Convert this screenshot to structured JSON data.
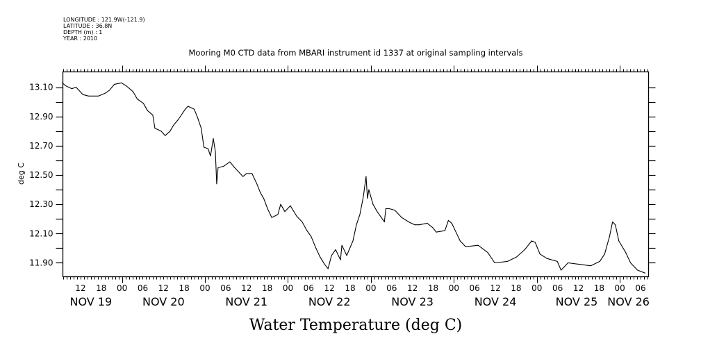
{
  "header": {
    "longitude": "LONGITUDE : 121.9W(-121.9)",
    "latitude": "LATITUDE : 36.8N",
    "depth": "DEPTH (m) : 1",
    "year": "YEAR : 2010"
  },
  "chart_data": {
    "type": "line",
    "title": "Mooring M0 CTD data from MBARI instrument id 1337 at original sampling intervals",
    "xlabel": "Water Temperature (deg C)",
    "ylabel": "deg C",
    "ylim": [
      11.805,
      13.205
    ],
    "xlim_hours_from_nov20": [
      -17.1,
      152.3
    ],
    "grid": false,
    "yticks": [
      "11.90",
      "12.10",
      "12.30",
      "12.50",
      "12.70",
      "12.90",
      "13.10"
    ],
    "xticks_hours_from_nov20": [
      -12,
      -6,
      0,
      6,
      12,
      18,
      24,
      30,
      36,
      42,
      48,
      54,
      60,
      66,
      72,
      78,
      84,
      90,
      96,
      102,
      108,
      114,
      120,
      126,
      132,
      138,
      144,
      150
    ],
    "xtick_labels": [
      "12",
      "18",
      "00",
      "06",
      "12",
      "18",
      "00",
      "06",
      "12",
      "18",
      "00",
      "06",
      "12",
      "18",
      "00",
      "06",
      "12",
      "18",
      "00",
      "06",
      "12",
      "18",
      "00",
      "06",
      "12",
      "18",
      "00",
      "06"
    ],
    "day_labels": [
      {
        "label": "NOV 19",
        "x": -9
      },
      {
        "label": "NOV 20",
        "x": 12
      },
      {
        "label": "NOV 21",
        "x": 36
      },
      {
        "label": "NOV 22",
        "x": 60
      },
      {
        "label": "NOV 23",
        "x": 84
      },
      {
        "label": "NOV 24",
        "x": 108
      },
      {
        "label": "NOV 25",
        "x": 131.5
      },
      {
        "label": "NOV 26",
        "x": 146.5
      }
    ],
    "series": [
      {
        "name": "Water Temperature",
        "color": "#000000",
        "x_hours_from_nov20": [
          -17.3,
          -16.3,
          -14.5,
          -13.3,
          -12.5,
          -11.3,
          -9.7,
          -6.8,
          -4.8,
          -3.6,
          -2.2,
          -0.2,
          1.2,
          3.2,
          4.4,
          6.2,
          7.4,
          8.9,
          9.5,
          11.3,
          12.5,
          13.9,
          14.9,
          16.3,
          18.3,
          19.1,
          20.9,
          21.9,
          22.9,
          23.7,
          24.9,
          25.6,
          26.4,
          27.0,
          27.4,
          27.8,
          29.4,
          31.2,
          32.6,
          35.0,
          36.0,
          37.6,
          39.0,
          40.0,
          41.0,
          42.1,
          43.3,
          45.1,
          45.9,
          47.1,
          48.7,
          50.5,
          52.1,
          53.5,
          54.7,
          56.1,
          57.3,
          58.6,
          59.6,
          60.6,
          61.8,
          63.2,
          63.6,
          65.0,
          66.8,
          67.8,
          68.8,
          69.8,
          70.6,
          71.0,
          71.4,
          72.6,
          73.8,
          75.9,
          76.3,
          77.3,
          78.9,
          80.9,
          82.9,
          84.7,
          85.9,
          88.3,
          89.9,
          90.9,
          93.4,
          94.4,
          95.4,
          96.8,
          97.8,
          99.4,
          103.0,
          105.8,
          107.8,
          111.5,
          114.1,
          116.5,
          118.5,
          119.5,
          120.9,
          122.9,
          125.9,
          127.0,
          129.0,
          132.2,
          135.6,
          138.2,
          139.6,
          141.0,
          141.9,
          142.7,
          143.7,
          145.7,
          147.1,
          149.1,
          151.3
        ],
        "values": [
          13.13,
          13.11,
          13.09,
          13.1,
          13.08,
          13.05,
          13.04,
          13.04,
          13.06,
          13.08,
          13.12,
          13.13,
          13.11,
          13.07,
          13.02,
          12.99,
          12.94,
          12.91,
          12.82,
          12.8,
          12.77,
          12.8,
          12.84,
          12.88,
          12.95,
          12.97,
          12.95,
          12.89,
          12.82,
          12.69,
          12.68,
          12.63,
          12.75,
          12.66,
          12.44,
          12.55,
          12.56,
          12.59,
          12.55,
          12.49,
          12.51,
          12.51,
          12.44,
          12.38,
          12.34,
          12.27,
          12.21,
          12.23,
          12.3,
          12.25,
          12.29,
          12.22,
          12.18,
          12.12,
          12.08,
          12.0,
          11.94,
          11.89,
          11.86,
          11.95,
          11.99,
          11.92,
          12.02,
          11.95,
          12.05,
          12.16,
          12.23,
          12.35,
          12.49,
          12.34,
          12.4,
          12.3,
          12.25,
          12.18,
          12.27,
          12.27,
          12.26,
          12.21,
          12.18,
          12.16,
          12.16,
          12.17,
          12.14,
          12.11,
          12.12,
          12.19,
          12.17,
          12.1,
          12.05,
          12.01,
          12.02,
          11.97,
          11.9,
          11.91,
          11.94,
          11.99,
          12.05,
          12.04,
          11.96,
          11.93,
          11.91,
          11.85,
          11.9,
          11.89,
          11.88,
          11.91,
          11.96,
          12.08,
          12.18,
          12.16,
          12.05,
          11.97,
          11.9,
          11.85,
          11.83
        ]
      }
    ]
  }
}
